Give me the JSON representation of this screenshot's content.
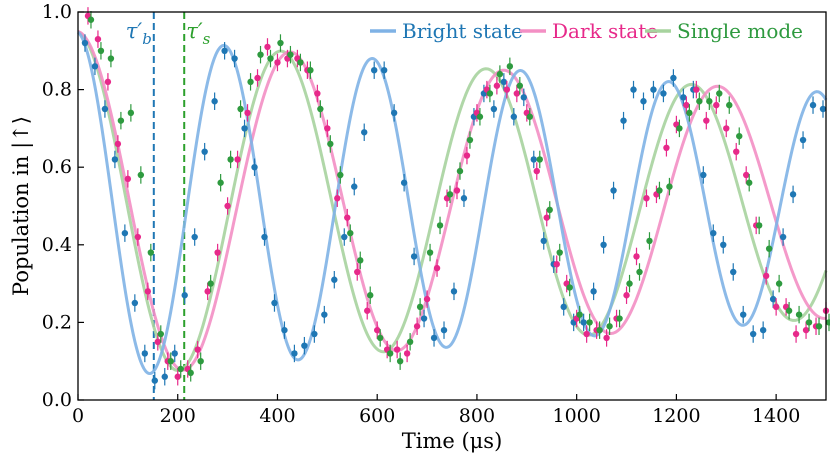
{
  "chart_data": {
    "type": "line",
    "xlabel": "Time (μs)",
    "ylabel": "Population in |↑⟩",
    "xlim": [
      0,
      1500
    ],
    "ylim": [
      0.0,
      1.0
    ],
    "xticks": [
      0,
      200,
      400,
      600,
      800,
      1000,
      1200,
      1400
    ],
    "yticks": [
      0.0,
      0.2,
      0.4,
      0.6,
      0.8,
      1.0
    ],
    "xtick_labels": [
      "0",
      "200",
      "400",
      "600",
      "800",
      "1000",
      "1200",
      "1400"
    ],
    "ytick_labels": [
      "0.0",
      "0.2",
      "0.4",
      "0.6",
      "0.8",
      "1.0"
    ],
    "legend_position": "top-right",
    "markers": [
      {
        "name": "tau_b",
        "label": "τ′b",
        "sym": "τ′",
        "sub": "b",
        "x": 152,
        "color": "#1f77b4"
      },
      {
        "name": "tau_s",
        "label": "τ′s",
        "sym": "τ′",
        "sub": "s",
        "x": 213,
        "color": "#2ca02c"
      }
    ],
    "series": [
      {
        "name": "Bright state",
        "line_color": "#7fb2e5",
        "point_color": "#1f77b4",
        "fit": {
          "A": 0.5,
          "B": 0.45,
          "omega": 0.02113,
          "tau": 3500,
          "phase": 0.09
        },
        "x": [
          20,
          40,
          60,
          80,
          100,
          120,
          140,
          160,
          180,
          200,
          220,
          240,
          260,
          280,
          300,
          320,
          340,
          360,
          380,
          400,
          420,
          440,
          460,
          480,
          500,
          520,
          540,
          560,
          580,
          600,
          620,
          640,
          660,
          680,
          700,
          720,
          740,
          760,
          780,
          800,
          820,
          840,
          860,
          880,
          900,
          920,
          940,
          960,
          980,
          1000,
          1020,
          1040,
          1060,
          1080,
          1100,
          1120,
          1140,
          1160,
          1180,
          1200,
          1220,
          1240,
          1260,
          1280,
          1300,
          1320,
          1340,
          1360,
          1380,
          1400,
          1420,
          1440,
          1460,
          1480,
          1500
        ],
        "y": [
          0.92,
          0.86,
          0.75,
          0.62,
          0.43,
          0.25,
          0.12,
          0.05,
          0.06,
          0.12,
          0.27,
          0.42,
          0.64,
          0.77,
          0.9,
          0.88,
          0.7,
          0.6,
          0.42,
          0.25,
          0.18,
          0.12,
          0.14,
          0.17,
          0.22,
          0.31,
          0.42,
          0.55,
          0.69,
          0.85,
          0.85,
          0.74,
          0.56,
          0.37,
          0.21,
          0.16,
          0.18,
          0.28,
          0.52,
          0.73,
          0.79,
          0.75,
          0.82,
          0.73,
          0.78,
          0.62,
          0.41,
          0.35,
          0.24,
          0.2,
          0.2,
          0.28,
          0.4,
          0.54,
          0.72,
          0.8,
          0.77,
          0.8,
          0.79,
          0.83,
          0.78,
          0.8,
          0.58,
          0.43,
          0.4,
          0.33,
          0.22,
          0.17,
          0.18,
          0.26,
          0.42,
          0.53,
          0.67,
          0.76,
          0.75
        ]
      },
      {
        "name": "Dark state",
        "line_color": "#f38fc4",
        "point_color": "#e7298a",
        "fit": {
          "A": 0.5,
          "B": 0.45,
          "omega": 0.01466,
          "tau": 3400,
          "phase": 0.03
        },
        "x": [
          20,
          40,
          60,
          80,
          100,
          120,
          140,
          160,
          180,
          200,
          220,
          240,
          260,
          280,
          300,
          320,
          340,
          360,
          380,
          400,
          420,
          440,
          460,
          480,
          500,
          520,
          540,
          560,
          580,
          600,
          620,
          640,
          660,
          680,
          700,
          720,
          740,
          760,
          780,
          800,
          820,
          840,
          860,
          880,
          900,
          920,
          940,
          960,
          980,
          1000,
          1020,
          1040,
          1060,
          1080,
          1100,
          1120,
          1140,
          1160,
          1180,
          1200,
          1220,
          1240,
          1260,
          1280,
          1300,
          1320,
          1340,
          1360,
          1380,
          1400,
          1420,
          1440,
          1460,
          1480,
          1500
        ],
        "y": [
          0.99,
          0.93,
          0.82,
          0.66,
          0.57,
          0.42,
          0.28,
          0.15,
          0.1,
          0.06,
          0.08,
          0.13,
          0.28,
          0.38,
          0.5,
          0.62,
          0.74,
          0.83,
          0.91,
          0.87,
          0.88,
          0.88,
          0.85,
          0.79,
          0.7,
          0.52,
          0.47,
          0.33,
          0.23,
          0.18,
          0.13,
          0.13,
          0.12,
          0.19,
          0.26,
          0.34,
          0.52,
          0.54,
          0.63,
          0.74,
          0.8,
          0.81,
          0.8,
          0.79,
          0.74,
          0.59,
          0.47,
          0.35,
          0.3,
          0.21,
          0.17,
          0.18,
          0.16,
          0.21,
          0.27,
          0.37,
          0.52,
          0.53,
          0.65,
          0.71,
          0.76,
          0.8,
          0.72,
          0.76,
          0.7,
          0.64,
          0.58,
          0.45,
          0.32,
          0.24,
          0.24,
          0.17,
          0.18,
          0.19,
          0.23
        ]
      },
      {
        "name": "Single mode",
        "line_color": "#a7d39e",
        "point_color": "#2e9a3f",
        "fit": {
          "A": 0.5,
          "B": 0.45,
          "omega": 0.01526,
          "tau": 3400,
          "phase": 0.06
        },
        "x": [
          20,
          40,
          60,
          80,
          100,
          120,
          140,
          160,
          180,
          200,
          220,
          240,
          260,
          280,
          300,
          320,
          340,
          360,
          380,
          400,
          420,
          440,
          460,
          480,
          500,
          520,
          540,
          560,
          580,
          600,
          620,
          640,
          660,
          680,
          700,
          720,
          740,
          760,
          780,
          800,
          820,
          840,
          860,
          880,
          900,
          920,
          940,
          960,
          980,
          1000,
          1020,
          1040,
          1060,
          1080,
          1100,
          1120,
          1140,
          1160,
          1180,
          1200,
          1220,
          1240,
          1260,
          1280,
          1300,
          1320,
          1340,
          1360,
          1380,
          1400,
          1420,
          1440,
          1460,
          1480,
          1500
        ],
        "y": [
          0.98,
          0.9,
          0.88,
          0.72,
          0.74,
          0.58,
          0.38,
          0.17,
          0.1,
          0.08,
          0.07,
          0.1,
          0.3,
          0.56,
          0.62,
          0.75,
          0.82,
          0.89,
          0.88,
          0.92,
          0.89,
          0.87,
          0.85,
          0.75,
          0.66,
          0.58,
          0.43,
          0.36,
          0.27,
          0.16,
          0.12,
          0.1,
          0.15,
          0.24,
          0.38,
          0.45,
          0.53,
          0.59,
          0.67,
          0.73,
          0.79,
          0.84,
          0.86,
          0.81,
          0.73,
          0.62,
          0.49,
          0.38,
          0.29,
          0.22,
          0.2,
          0.18,
          0.19,
          0.21,
          0.3,
          0.33,
          0.41,
          0.54,
          0.55,
          0.7,
          0.74,
          0.77,
          0.77,
          0.79,
          0.76,
          0.68,
          0.56,
          0.45,
          0.39,
          0.3,
          0.23,
          0.22,
          0.2,
          0.19,
          0.2
        ]
      }
    ]
  }
}
